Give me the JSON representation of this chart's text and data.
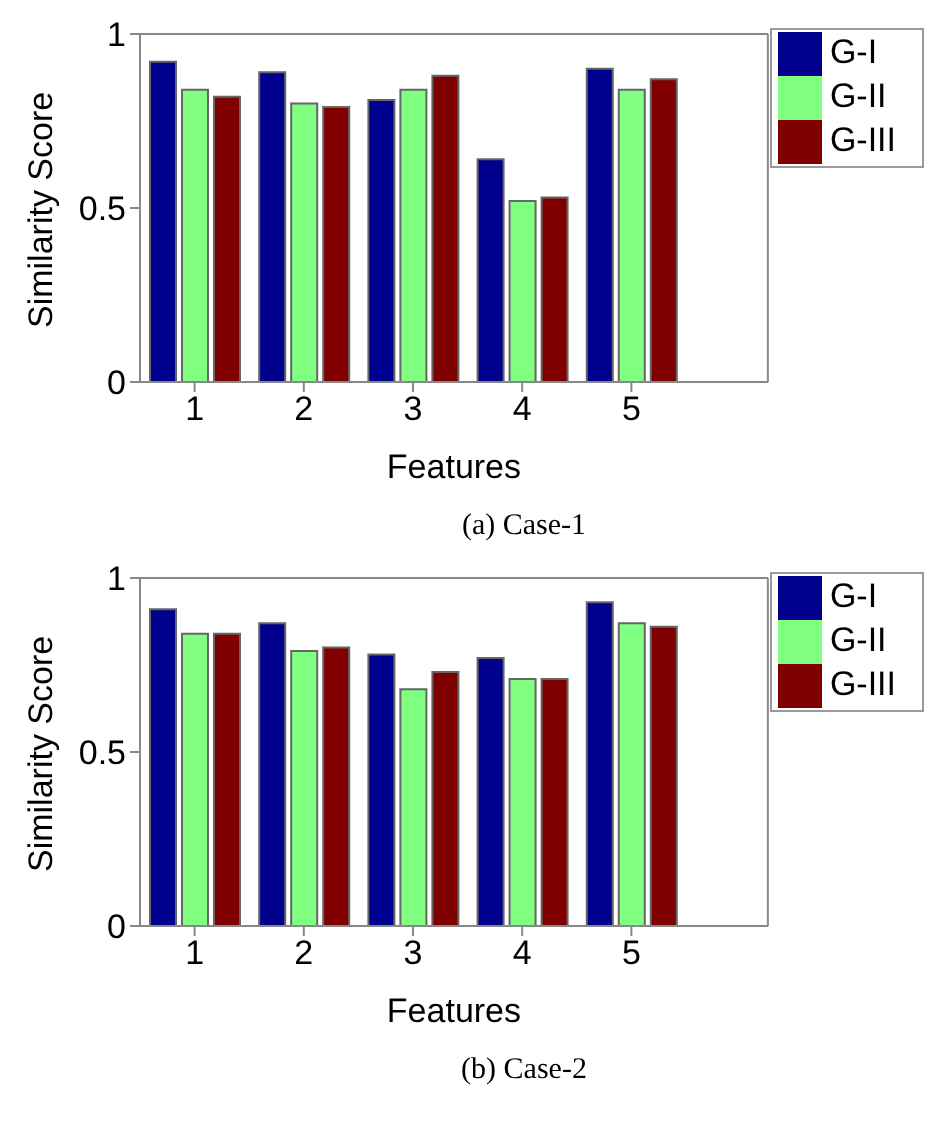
{
  "chart_data": [
    {
      "type": "bar",
      "x": [
        1,
        2,
        3,
        4,
        5
      ],
      "xlim": [
        0.5,
        6.25
      ],
      "xticks": [
        1,
        2,
        3,
        4,
        5
      ],
      "ylim": [
        0,
        1
      ],
      "yticks": [
        0,
        0.5,
        1
      ],
      "xlabel": "Features",
      "ylabel": "Similarity Score",
      "legend": "top right",
      "grid": false,
      "annotations": [
        "(a)  Case-1"
      ],
      "series": [
        {
          "name": "G-I",
          "color": "#00008f",
          "values": [
            0.92,
            0.89,
            0.81,
            0.64,
            0.9
          ]
        },
        {
          "name": "G-II",
          "color": "#80ff80",
          "values": [
            0.84,
            0.8,
            0.84,
            0.52,
            0.84
          ]
        },
        {
          "name": "G-III",
          "color": "#800000",
          "values": [
            0.82,
            0.79,
            0.88,
            0.53,
            0.87
          ]
        }
      ]
    },
    {
      "type": "bar",
      "x": [
        1,
        2,
        3,
        4,
        5
      ],
      "xlim": [
        0.5,
        6.25
      ],
      "xticks": [
        1,
        2,
        3,
        4,
        5
      ],
      "ylim": [
        0,
        1
      ],
      "yticks": [
        0,
        0.5,
        1
      ],
      "xlabel": "Features",
      "ylabel": "Similarity Score",
      "legend": "top right",
      "grid": false,
      "annotations": [
        "(b)  Case-2"
      ],
      "series": [
        {
          "name": "G-I",
          "color": "#00008f",
          "values": [
            0.91,
            0.87,
            0.78,
            0.77,
            0.93
          ]
        },
        {
          "name": "G-II",
          "color": "#80ff80",
          "values": [
            0.84,
            0.79,
            0.68,
            0.71,
            0.87
          ]
        },
        {
          "name": "G-III",
          "color": "#800000",
          "values": [
            0.84,
            0.8,
            0.73,
            0.71,
            0.86
          ]
        }
      ]
    }
  ]
}
